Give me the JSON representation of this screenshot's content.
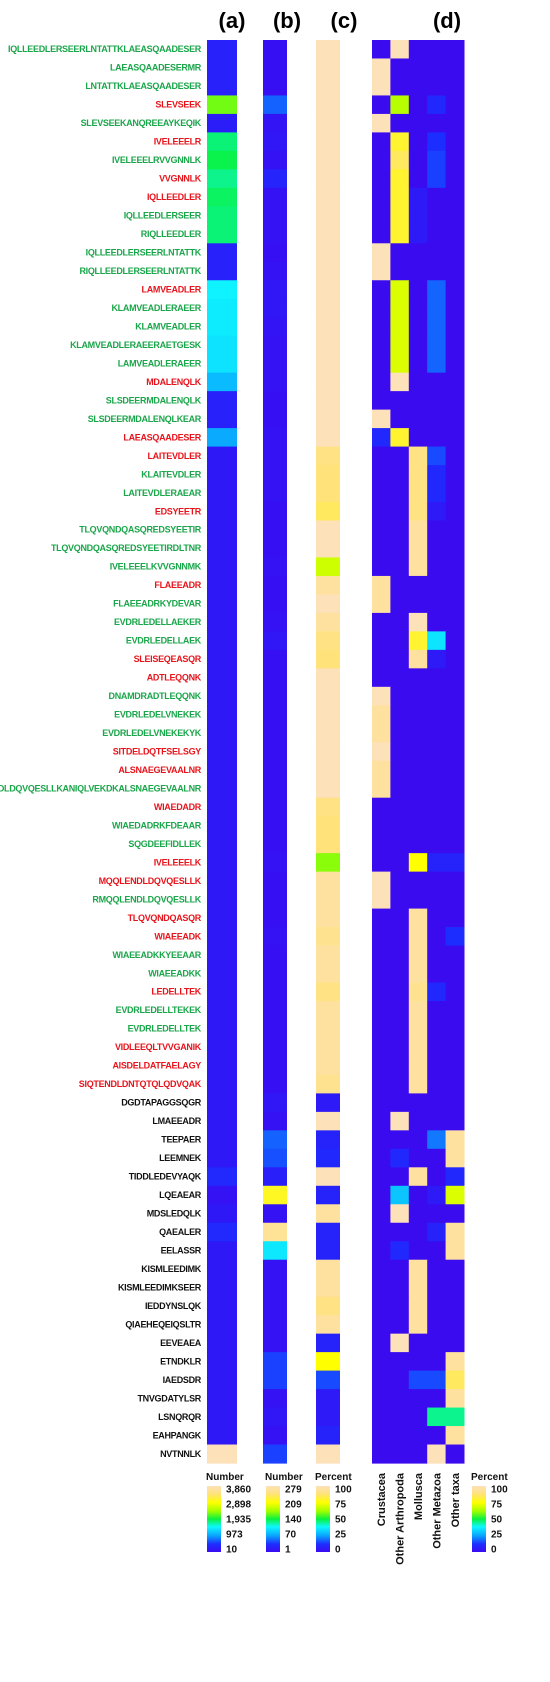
{
  "chart_data": {
    "type": "heatmap",
    "panels": {
      "a": {
        "title": "(a)",
        "legend_title": "Number",
        "ticks": [
          "3,860",
          "2,898",
          "1,935",
          "973",
          "10"
        ],
        "range": [
          10,
          3860
        ]
      },
      "b": {
        "title": "(b)",
        "legend_title": "Number",
        "ticks": [
          "279",
          "209",
          "140",
          "70",
          "1"
        ],
        "range": [
          1,
          279
        ]
      },
      "c": {
        "title": "(c)",
        "legend_title": "Percent",
        "ticks": [
          "100",
          "75",
          "50",
          "25",
          "0"
        ],
        "range": [
          0,
          100
        ]
      },
      "d": {
        "title": "(d)",
        "legend_title": "Percent",
        "ticks": [
          "100",
          "75",
          "50",
          "25",
          "0"
        ],
        "range": [
          0,
          100
        ]
      }
    },
    "taxa": [
      "Crustacea",
      "Other Arthropoda",
      "Mollusca",
      "Other Metazoa",
      "Other taxa"
    ],
    "label_colors": {
      "green": "#1aa64a",
      "red": "#e8141c",
      "black": "#111111"
    },
    "rows": [
      {
        "label": "IQLLEEDLERSEERLNTATTKLAEASQAADESER",
        "color": "green",
        "a": 300,
        "b": 6,
        "c": 100,
        "d": [
          0,
          100,
          0,
          0,
          0
        ]
      },
      {
        "label": "LAEASQAADESERMR",
        "color": "green",
        "a": 300,
        "b": 6,
        "c": 100,
        "d": [
          100,
          0,
          0,
          0,
          0
        ]
      },
      {
        "label": "LNTATTKLAEASQAADESER",
        "color": "green",
        "a": 300,
        "b": 6,
        "c": 100,
        "d": [
          100,
          0,
          0,
          0,
          0
        ]
      },
      {
        "label": "SLEVSEEK",
        "color": "red",
        "a": 2250,
        "b": 50,
        "c": 100,
        "d": [
          0,
          65,
          0,
          10,
          0
        ]
      },
      {
        "label": "SLEVSEEKANQREEAYKEQIK",
        "color": "green",
        "a": 250,
        "b": 10,
        "c": 100,
        "d": [
          100,
          0,
          0,
          0,
          0
        ]
      },
      {
        "label": "IVELEEELR",
        "color": "red",
        "a": 1800,
        "b": 12,
        "c": 100,
        "d": [
          0,
          80,
          0,
          12,
          0
        ]
      },
      {
        "label": "IVELEEELRVVGNNLK",
        "color": "green",
        "a": 1900,
        "b": 8,
        "c": 100,
        "d": [
          0,
          85,
          0,
          14,
          0
        ]
      },
      {
        "label": "VVGNNLK",
        "color": "red",
        "a": 1750,
        "b": 25,
        "c": 100,
        "d": [
          0,
          80,
          0,
          14,
          0
        ]
      },
      {
        "label": "IQLLEEDLER",
        "color": "red",
        "a": 1850,
        "b": 8,
        "c": 100,
        "d": [
          0,
          80,
          5,
          0,
          0
        ]
      },
      {
        "label": "IQLLEEDLERSEER",
        "color": "green",
        "a": 1800,
        "b": 8,
        "c": 100,
        "d": [
          0,
          80,
          5,
          0,
          0
        ]
      },
      {
        "label": "RIQLLEEDLER",
        "color": "green",
        "a": 1800,
        "b": 8,
        "c": 100,
        "d": [
          0,
          80,
          5,
          0,
          0
        ]
      },
      {
        "label": "IQLLEEDLERSEERLNTATTK",
        "color": "green",
        "a": 300,
        "b": 6,
        "c": 100,
        "d": [
          100,
          0,
          0,
          0,
          0
        ]
      },
      {
        "label": "RIQLLEEDLERSEERLNTATTK",
        "color": "green",
        "a": 300,
        "b": 8,
        "c": 100,
        "d": [
          100,
          0,
          0,
          0,
          0
        ]
      },
      {
        "label": "LAMVEADLER",
        "color": "red",
        "a": 1450,
        "b": 12,
        "c": 100,
        "d": [
          0,
          70,
          0,
          18,
          0
        ]
      },
      {
        "label": "KLAMVEADLERAEER",
        "color": "green",
        "a": 1400,
        "b": 12,
        "c": 100,
        "d": [
          0,
          70,
          0,
          18,
          0
        ]
      },
      {
        "label": "KLAMVEADLER",
        "color": "green",
        "a": 1400,
        "b": 10,
        "c": 100,
        "d": [
          0,
          70,
          0,
          18,
          0
        ]
      },
      {
        "label": "KLAMVEADLERAEERAETGESK",
        "color": "green",
        "a": 1350,
        "b": 8,
        "c": 100,
        "d": [
          0,
          70,
          0,
          18,
          0
        ]
      },
      {
        "label": "LAMVEADLERAEER",
        "color": "green",
        "a": 1350,
        "b": 8,
        "c": 100,
        "d": [
          0,
          70,
          0,
          18,
          0
        ]
      },
      {
        "label": "MDALENQLK",
        "color": "red",
        "a": 1100,
        "b": 8,
        "c": 100,
        "d": [
          0,
          100,
          0,
          0,
          0
        ]
      },
      {
        "label": "SLSDEERMDALENQLK",
        "color": "green",
        "a": 300,
        "b": 6,
        "c": 100,
        "d": [
          0,
          0,
          0,
          0,
          0
        ]
      },
      {
        "label": "SLSDEERMDALENQLKEAR",
        "color": "green",
        "a": 300,
        "b": 6,
        "c": 100,
        "d": [
          100,
          0,
          0,
          0,
          0
        ]
      },
      {
        "label": "LAEASQAADESER",
        "color": "red",
        "a": 1000,
        "b": 8,
        "c": 100,
        "d": [
          10,
          80,
          0,
          0,
          0
        ]
      },
      {
        "label": "LAITEVDLER",
        "color": "red",
        "a": 200,
        "b": 8,
        "c": 90,
        "d": [
          0,
          0,
          90,
          15,
          0
        ]
      },
      {
        "label": "KLAITEVDLER",
        "color": "green",
        "a": 200,
        "b": 8,
        "c": 88,
        "d": [
          0,
          0,
          90,
          10,
          0
        ]
      },
      {
        "label": "LAITEVDLERAEAR",
        "color": "green",
        "a": 200,
        "b": 8,
        "c": 88,
        "d": [
          0,
          0,
          90,
          10,
          0
        ]
      },
      {
        "label": "EDSYEETR",
        "color": "red",
        "a": 200,
        "b": 6,
        "c": 85,
        "d": [
          0,
          0,
          90,
          5,
          0
        ]
      },
      {
        "label": "TLQVQNDQASQREDSYEETIR",
        "color": "green",
        "a": 200,
        "b": 6,
        "c": 100,
        "d": [
          0,
          0,
          95,
          0,
          0
        ]
      },
      {
        "label": "TLQVQNDQASQREDSYEETIRDLTNR",
        "color": "green",
        "a": 200,
        "b": 6,
        "c": 100,
        "d": [
          0,
          0,
          95,
          0,
          0
        ]
      },
      {
        "label": "IVELEEELKVVGNNMK",
        "color": "green",
        "a": 200,
        "b": 8,
        "c": 68,
        "d": [
          0,
          0,
          95,
          0,
          0
        ]
      },
      {
        "label": "FLAEEADR",
        "color": "red",
        "a": 200,
        "b": 6,
        "c": 95,
        "d": [
          95,
          0,
          0,
          0,
          0
        ]
      },
      {
        "label": "FLAEEADRKYDEVAR",
        "color": "green",
        "a": 200,
        "b": 6,
        "c": 100,
        "d": [
          95,
          0,
          0,
          0,
          0
        ]
      },
      {
        "label": "EVDRLEDELLAEKER",
        "color": "green",
        "a": 200,
        "b": 8,
        "c": 95,
        "d": [
          0,
          0,
          100,
          0,
          0
        ]
      },
      {
        "label": "EVDRLEDELLAEK",
        "color": "green",
        "a": 200,
        "b": 12,
        "c": 90,
        "d": [
          0,
          0,
          80,
          35,
          0
        ]
      },
      {
        "label": "SLEISEQEASQR",
        "color": "red",
        "a": 200,
        "b": 6,
        "c": 88,
        "d": [
          0,
          0,
          95,
          5,
          0
        ]
      },
      {
        "label": "ADTLEQQNK",
        "color": "red",
        "a": 200,
        "b": 6,
        "c": 100,
        "d": [
          0,
          0,
          0,
          0,
          0
        ]
      },
      {
        "label": "DNAMDRADTLEQQNK",
        "color": "green",
        "a": 200,
        "b": 6,
        "c": 100,
        "d": [
          100,
          0,
          0,
          0,
          0
        ]
      },
      {
        "label": "EVDRLEDELVNEKEK",
        "color": "green",
        "a": 200,
        "b": 6,
        "c": 100,
        "d": [
          95,
          0,
          0,
          0,
          0
        ]
      },
      {
        "label": "EVDRLEDELVNEKEKYK",
        "color": "green",
        "a": 200,
        "b": 6,
        "c": 100,
        "d": [
          95,
          0,
          0,
          0,
          0
        ]
      },
      {
        "label": "SITDELDQTFSELSGY",
        "color": "red",
        "a": 200,
        "b": 6,
        "c": 100,
        "d": [
          100,
          0,
          0,
          0,
          0
        ]
      },
      {
        "label": "ALSNAEGEVAALNR",
        "color": "red",
        "a": 200,
        "b": 6,
        "c": 100,
        "d": [
          95,
          0,
          0,
          0,
          0
        ]
      },
      {
        "label": "MQQLENDLDQVQESLLKANIQLVEKDKALSNAEGEVAALNR",
        "color": "green",
        "a": 200,
        "b": 6,
        "c": 100,
        "d": [
          95,
          0,
          0,
          0,
          0
        ]
      },
      {
        "label": "WIAEDADR",
        "color": "red",
        "a": 200,
        "b": 6,
        "c": 90,
        "d": [
          0,
          0,
          0,
          0,
          0
        ]
      },
      {
        "label": "WIAEDADRKFDEAAR",
        "color": "green",
        "a": 200,
        "b": 6,
        "c": 88,
        "d": [
          0,
          0,
          0,
          0,
          0
        ]
      },
      {
        "label": "SQGDEEFIDLLEK",
        "color": "green",
        "a": 200,
        "b": 6,
        "c": 88,
        "d": [
          0,
          0,
          0,
          0,
          0
        ]
      },
      {
        "label": "IVELEEELK",
        "color": "red",
        "a": 200,
        "b": 8,
        "c": 60,
        "d": [
          0,
          0,
          75,
          8,
          8
        ]
      },
      {
        "label": "MQQLENDLDQVQESLLK",
        "color": "red",
        "a": 200,
        "b": 6,
        "c": 95,
        "d": [
          100,
          0,
          0,
          0,
          0
        ]
      },
      {
        "label": "RMQQLENDLDQVQESLLK",
        "color": "green",
        "a": 200,
        "b": 6,
        "c": 95,
        "d": [
          100,
          0,
          0,
          0,
          0
        ]
      },
      {
        "label": "TLQVQNDQASQR",
        "color": "red",
        "a": 200,
        "b": 6,
        "c": 95,
        "d": [
          0,
          0,
          95,
          0,
          0
        ]
      },
      {
        "label": "WIAEEADK",
        "color": "red",
        "a": 200,
        "b": 8,
        "c": 92,
        "d": [
          0,
          0,
          95,
          0,
          12
        ]
      },
      {
        "label": "WIAEEADKKYEEAAR",
        "color": "green",
        "a": 200,
        "b": 6,
        "c": 95,
        "d": [
          0,
          0,
          95,
          0,
          0
        ]
      },
      {
        "label": "WIAEEADKK",
        "color": "green",
        "a": 200,
        "b": 6,
        "c": 95,
        "d": [
          0,
          0,
          95,
          0,
          0
        ]
      },
      {
        "label": "LEDELLTEK",
        "color": "red",
        "a": 200,
        "b": 6,
        "c": 90,
        "d": [
          0,
          0,
          92,
          10,
          0
        ]
      },
      {
        "label": "EVDRLEDELLTEKEK",
        "color": "green",
        "a": 200,
        "b": 6,
        "c": 95,
        "d": [
          0,
          0,
          95,
          0,
          0
        ]
      },
      {
        "label": "EVDRLEDELLTEK",
        "color": "green",
        "a": 200,
        "b": 6,
        "c": 95,
        "d": [
          0,
          0,
          95,
          0,
          0
        ]
      },
      {
        "label": "VIDLEEQLTVVGANIK",
        "color": "red",
        "a": 200,
        "b": 6,
        "c": 95,
        "d": [
          0,
          0,
          95,
          0,
          0
        ]
      },
      {
        "label": "AISDELDATFAELAGY",
        "color": "red",
        "a": 200,
        "b": 6,
        "c": 95,
        "d": [
          0,
          0,
          95,
          0,
          0
        ]
      },
      {
        "label": "SIQTENDLDNTQTQLQDVQAK",
        "color": "red",
        "a": 200,
        "b": 6,
        "c": 92,
        "d": [
          0,
          0,
          95,
          0,
          0
        ]
      },
      {
        "label": "DGDTAPAGGSQGR",
        "color": "black",
        "a": 200,
        "b": 12,
        "c": 5,
        "d": [
          0,
          0,
          0,
          0,
          0
        ]
      },
      {
        "label": "LMAEEADR",
        "color": "black",
        "a": 200,
        "b": 8,
        "c": 100,
        "d": [
          0,
          100,
          0,
          0,
          0
        ]
      },
      {
        "label": "TEEPAER",
        "color": "black",
        "a": 200,
        "b": 50,
        "c": 8,
        "d": [
          0,
          0,
          0,
          20,
          95
        ]
      },
      {
        "label": "LEEMNEK",
        "color": "black",
        "a": 200,
        "b": 45,
        "c": 10,
        "d": [
          0,
          10,
          0,
          0,
          95
        ]
      },
      {
        "label": "TIDDLEDEVYAQK",
        "color": "black",
        "a": 400,
        "b": 20,
        "c": 100,
        "d": [
          0,
          0,
          95,
          0,
          10
        ]
      },
      {
        "label": "LQEAEAR",
        "color": "black",
        "a": 100,
        "b": 220,
        "c": 8,
        "d": [
          0,
          30,
          0,
          5,
          70
        ]
      },
      {
        "label": "MDSLEDQLK",
        "color": "black",
        "a": 200,
        "b": 8,
        "c": 95,
        "d": [
          0,
          100,
          0,
          0,
          0
        ]
      },
      {
        "label": "QAEALER",
        "color": "black",
        "a": 400,
        "b": 260,
        "c": 8,
        "d": [
          0,
          0,
          0,
          8,
          95
        ]
      },
      {
        "label": "EELASSR",
        "color": "black",
        "a": 200,
        "b": 100,
        "c": 8,
        "d": [
          0,
          10,
          0,
          0,
          95
        ]
      },
      {
        "label": "KISMLEEDIMK",
        "color": "black",
        "a": 200,
        "b": 8,
        "c": 95,
        "d": [
          0,
          0,
          95,
          0,
          0
        ]
      },
      {
        "label": "KISMLEEDIMKSEER",
        "color": "black",
        "a": 200,
        "b": 8,
        "c": 95,
        "d": [
          0,
          0,
          95,
          0,
          0
        ]
      },
      {
        "label": "IEDDYNSLQK",
        "color": "black",
        "a": 200,
        "b": 8,
        "c": 90,
        "d": [
          0,
          0,
          95,
          0,
          0
        ]
      },
      {
        "label": "QIAEHEQEIQSLTR",
        "color": "black",
        "a": 200,
        "b": 8,
        "c": 95,
        "d": [
          0,
          0,
          95,
          0,
          0
        ]
      },
      {
        "label": "EEVEAEA",
        "color": "black",
        "a": 200,
        "b": 8,
        "c": 8,
        "d": [
          0,
          100,
          0,
          0,
          0
        ]
      },
      {
        "label": "ETNDKLR",
        "color": "black",
        "a": 200,
        "b": 40,
        "c": 75,
        "d": [
          0,
          0,
          0,
          0,
          95
        ]
      },
      {
        "label": "IAEDSDR",
        "color": "black",
        "a": 200,
        "b": 40,
        "c": 15,
        "d": [
          0,
          0,
          15,
          15,
          85
        ]
      },
      {
        "label": "TNVGDATYLSR",
        "color": "black",
        "a": 200,
        "b": 8,
        "c": 5,
        "d": [
          0,
          0,
          0,
          0,
          95
        ]
      },
      {
        "label": "LSNQRQR",
        "color": "black",
        "a": 200,
        "b": 12,
        "c": 5,
        "d": [
          0,
          0,
          0,
          45,
          45
        ]
      },
      {
        "label": "EAHPANGK",
        "color": "black",
        "a": 200,
        "b": 8,
        "c": 8,
        "d": [
          0,
          0,
          0,
          0,
          95
        ]
      },
      {
        "label": "NVTNNLK",
        "color": "black",
        "a": 3860,
        "b": 40,
        "c": 100,
        "d": [
          0,
          0,
          0,
          100,
          0
        ]
      }
    ]
  }
}
